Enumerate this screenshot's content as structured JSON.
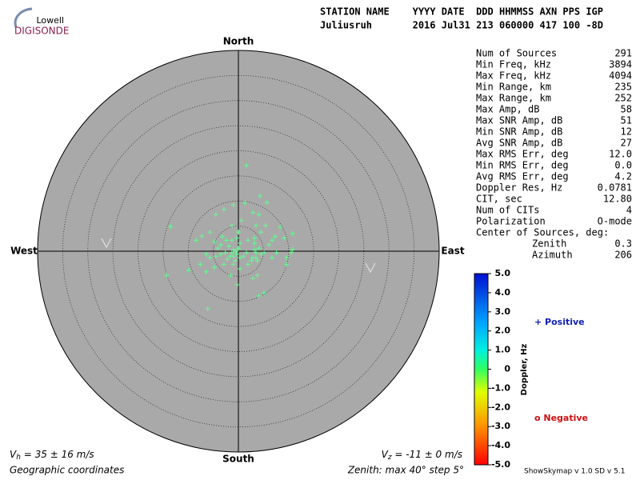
{
  "logo": {
    "top": "Lowell",
    "bottom": "DIGISONDE"
  },
  "header": {
    "line1": "STATION NAME    YYYY DATE  DDD HHMMSS AXN PPS IGP",
    "line2": "Juliusruh       2016 Jul31 213 060000 417 100 -8D"
  },
  "stats": {
    "rows": [
      [
        "Num of Sources",
        "291"
      ],
      [
        "Min Freq, kHz",
        "3894"
      ],
      [
        "Max Freq, kHz",
        "4094"
      ],
      [
        "Min Range, km",
        "235"
      ],
      [
        "Max Range, km",
        "252"
      ],
      [
        "Max Amp, dB",
        "58"
      ],
      [
        "Max SNR Amp, dB",
        "51"
      ],
      [
        "Min SNR Amp, dB",
        "12"
      ],
      [
        "Avg SNR Amp, dB",
        "27"
      ],
      [
        "Max RMS Err, deg",
        "12.0"
      ],
      [
        "Min RMS Err, deg",
        "0.0"
      ],
      [
        "Avg RMS Err, deg",
        "4.2"
      ],
      [
        "Doppler Res, Hz",
        "0.0781"
      ],
      [
        "CIT, sec",
        "12.80"
      ],
      [
        "Num of CITs",
        "4"
      ],
      [
        "Polarization",
        "O-mode"
      ]
    ],
    "center_title": "Center of Sources, deg:",
    "center_rows": [
      [
        "Zenith",
        "0.3"
      ],
      [
        "Azimuth",
        "206"
      ]
    ]
  },
  "chart_data": {
    "type": "skymap",
    "directions": {
      "north": "North",
      "south": "South",
      "west": "West",
      "east": "East"
    },
    "rlim": [
      0,
      40
    ],
    "rticks": [
      5,
      10,
      15,
      20,
      25,
      30,
      35
    ],
    "color": "#5dff8f",
    "x": [
      1.6,
      -1.0,
      1.3,
      4.3,
      5.7,
      -2.9,
      2.9,
      4.1,
      0.6,
      -4.5,
      -13.5,
      -1.3,
      3.5,
      8.3,
      10.8,
      9.1,
      7.3,
      4.5,
      -7.3,
      -5.7,
      -8.4,
      -3.2,
      -2.4,
      -1.3,
      -0.3,
      0.3,
      -1.9,
      -1.0,
      -0.3,
      -1.6,
      -2.6,
      -3.5,
      -4.5,
      -5.7,
      -6.4,
      -7.6,
      -9.9,
      -14.3,
      -6.4,
      -4.8,
      -2.9,
      -1.0,
      0.3,
      -1.6,
      -0.2,
      2.9,
      3.8,
      1.9,
      2.9,
      3.5,
      4.5,
      3.2,
      4.1,
      5.1,
      6.7,
      7.6,
      6.1,
      9.6,
      10.5,
      10.8,
      9.6,
      5.1,
      4.1,
      -6.1,
      1.0,
      1.6,
      0.3,
      -0.6,
      -2.2,
      -3.5,
      -4.8,
      1.9,
      3.2,
      5.4,
      0.0,
      -4.1,
      -1.3,
      -0.5,
      -1.0,
      0.0,
      3.5,
      3.8,
      2.6,
      3.2,
      6.7
    ],
    "y": [
      17.1,
      9.2,
      9.6,
      11.0,
      9.7,
      8.3,
      7.7,
      7.3,
      6.1,
      7.3,
      4.9,
      5.1,
      5.1,
      4.8,
      3.5,
      2.6,
      2.9,
      3.8,
      3.0,
      3.8,
      2.2,
      2.9,
      2.2,
      2.2,
      2.6,
      1.6,
      1.0,
      0.3,
      -0.6,
      -1.0,
      -0.3,
      -0.6,
      -1.0,
      -1.3,
      -0.6,
      -2.6,
      -3.8,
      -4.8,
      -4.1,
      -3.2,
      -2.6,
      -2.6,
      -3.5,
      -4.8,
      -6.7,
      -5.4,
      -4.8,
      -2.6,
      -1.3,
      -0.3,
      -0.6,
      0.3,
      0.6,
      -0.3,
      -1.3,
      -0.3,
      1.3,
      -1.3,
      -0.3,
      0.3,
      -2.6,
      -8.3,
      -8.9,
      -11.5,
      -1.0,
      -0.3,
      -1.3,
      -1.9,
      -1.6,
      1.3,
      1.9,
      2.2,
      2.6,
      5.1,
      3.8,
      0.6,
      -0.3,
      0.0,
      -1.0,
      0.6,
      -1.3,
      -1.9,
      -1.9,
      1.6,
      2.2
    ],
    "vh": {
      "symbol": "V",
      "sub": "h",
      "text": " = 35 ± 16 m/s"
    },
    "vz": {
      "symbol": "V",
      "sub": "z",
      "text": " = -11 ± 0 m/s"
    }
  },
  "colorbar": {
    "label": "Doppler, Hz",
    "ylim": [
      -5,
      5
    ],
    "yticks": [
      {
        "value": 5,
        "label": "5.0"
      },
      {
        "value": 4,
        "label": "4.0"
      },
      {
        "value": 3,
        "label": "3.0"
      },
      {
        "value": 2,
        "label": "2.0"
      },
      {
        "value": 1,
        "label": "1.0"
      },
      0,
      {
        "value": -1,
        "label": "-1.0"
      },
      {
        "value": -2,
        "label": "-2.0"
      },
      {
        "value": -3,
        "label": "-3.0"
      },
      {
        "value": -4,
        "label": "-4.0"
      },
      {
        "value": -5,
        "label": "-5.0"
      }
    ],
    "positive": "+ Positive",
    "negative": "o Negative"
  },
  "footer": {
    "coords": "Geographic coordinates",
    "zenith": "Zenith: max 40°  step 5°",
    "version": "ShowSkymap v 1.0   SD v 5.1"
  }
}
